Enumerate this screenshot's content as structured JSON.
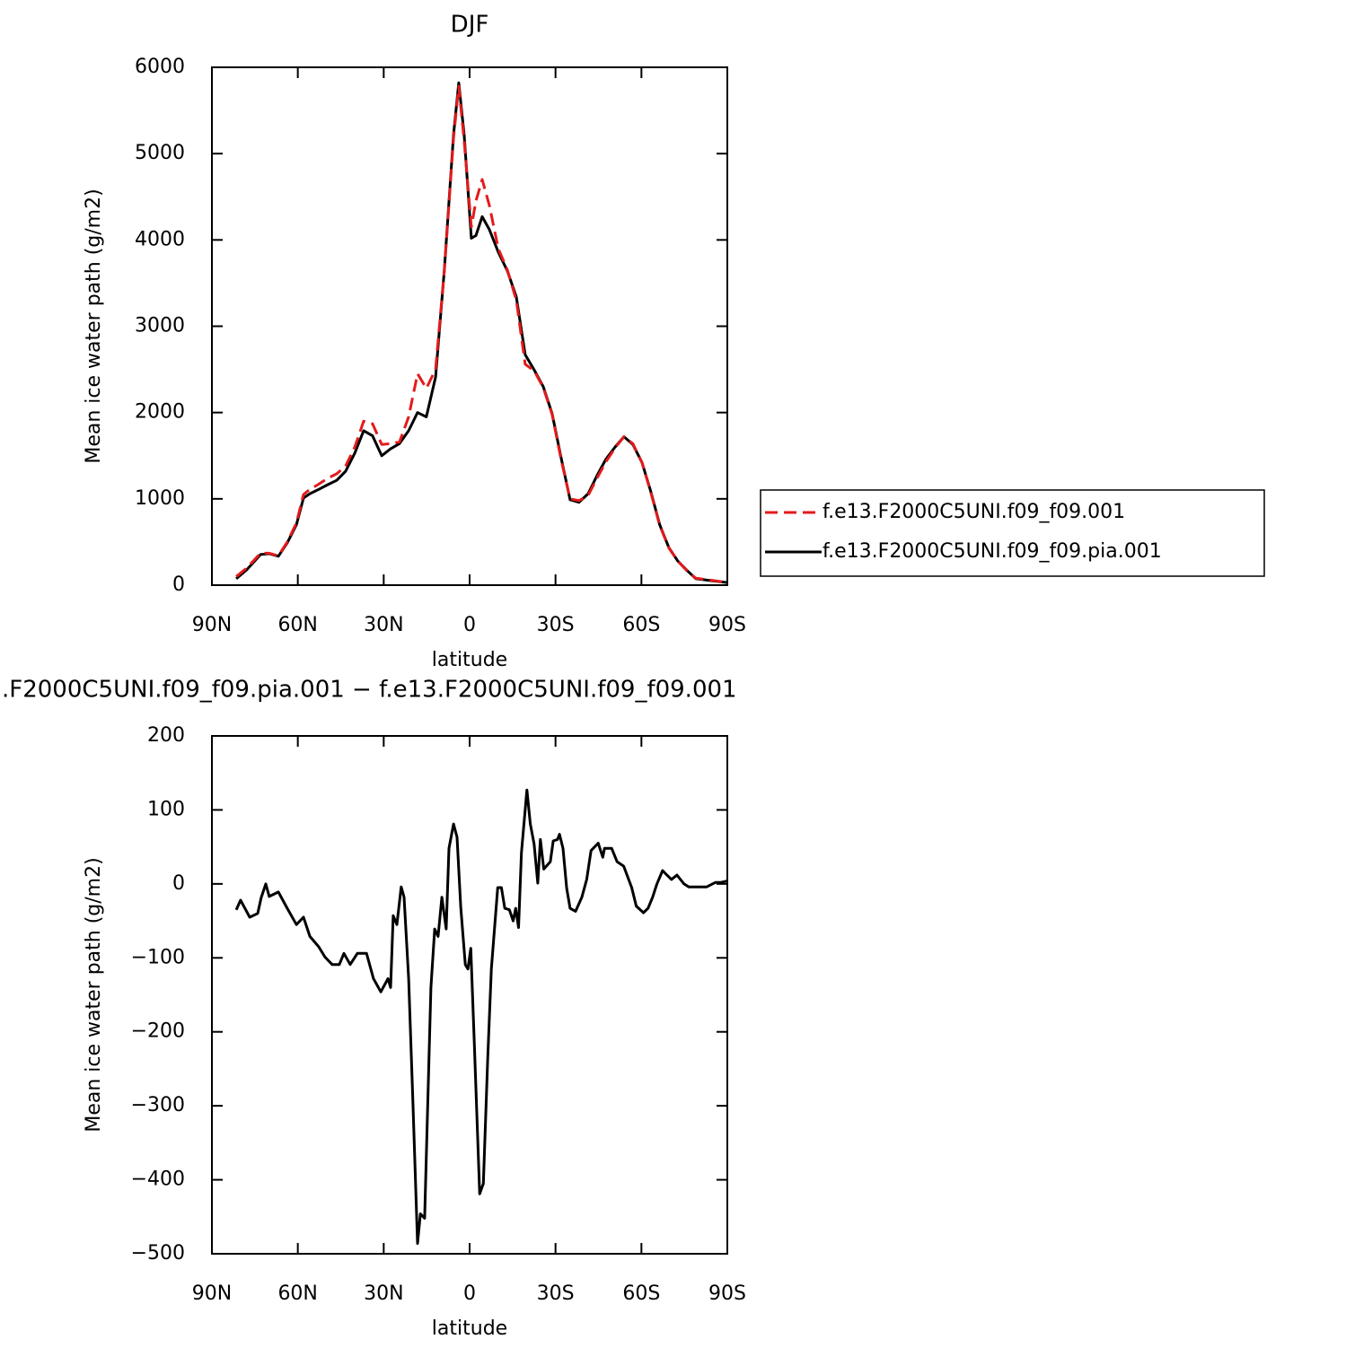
{
  "chart_data": [
    {
      "type": "line",
      "title": "DJF",
      "xlabel": "latitude",
      "ylabel": "Mean ice water path (g/m2)",
      "x": [
        81.5,
        77.8,
        73,
        70,
        66.8,
        63.7,
        60.5,
        58,
        55.8,
        52.7,
        49.5,
        46.4,
        43.3,
        40.1,
        37,
        33.9,
        30.7,
        27.6,
        24.5,
        21.3,
        18.2,
        15.1,
        11.9,
        8.8,
        5.6,
        3.8,
        1.9,
        -0.6,
        -2.2,
        -4.4,
        -6.9,
        -10,
        -13.2,
        -16.3,
        -19.4,
        -22.6,
        -25.7,
        -28.8,
        -32,
        -35.1,
        -38.2,
        -41.4,
        -44.5,
        -47.6,
        -50.8,
        -53.9,
        -57,
        -60.2,
        -63.3,
        -66.4,
        -69.6,
        -72.7,
        -75.8,
        -79,
        -83.7,
        -90
      ],
      "series": [
        {
          "name": "f.e13.F2000C5UNI.f09_f09.001",
          "color": "#e41a1c",
          "linestyle": "dashed",
          "values": [
            100,
            200,
            370,
            370,
            340,
            500,
            720,
            1050,
            1110,
            1170,
            1240,
            1290,
            1380,
            1600,
            1900,
            1870,
            1630,
            1640,
            1660,
            1950,
            2450,
            2280,
            2500,
            3650,
            5180,
            5780,
            5150,
            4150,
            4450,
            4700,
            4400,
            3900,
            3650,
            3300,
            2560,
            2480,
            2290,
            1980,
            1450,
            1000,
            980,
            1040,
            1240,
            1430,
            1590,
            1720,
            1640,
            1420,
            1070,
            690,
            430,
            280,
            170,
            80,
            60,
            30
          ]
        },
        {
          "name": "f.e13.F2000C5UNI.f09_f09.pia.001",
          "color": "#000000",
          "linestyle": "solid",
          "values": [
            75,
            180,
            355,
            365,
            335,
            490,
            700,
            1010,
            1060,
            1110,
            1165,
            1215,
            1320,
            1530,
            1790,
            1730,
            1500,
            1580,
            1640,
            1790,
            2000,
            1950,
            2410,
            3660,
            5220,
            5820,
            5220,
            4020,
            4050,
            4270,
            4120,
            3860,
            3640,
            3340,
            2670,
            2490,
            2300,
            1990,
            1470,
            990,
            960,
            1060,
            1270,
            1460,
            1600,
            1720,
            1630,
            1420,
            1080,
            700,
            435,
            280,
            175,
            75,
            55,
            30
          ]
        }
      ],
      "xlim": [
        90,
        -90
      ],
      "xticks": [
        {
          "value": 90,
          "label": "90N"
        },
        {
          "value": 60,
          "label": "60N"
        },
        {
          "value": 30,
          "label": "30N"
        },
        0,
        {
          "value": -30,
          "label": "30S"
        },
        {
          "value": -60,
          "label": "60S"
        },
        {
          "value": -90,
          "label": "90S"
        }
      ],
      "ylim": [
        0,
        6000
      ],
      "yticks": [
        0,
        1000,
        2000,
        3000,
        4000,
        5000,
        6000
      ],
      "legend": "right"
    },
    {
      "type": "line",
      "title": ".F2000C5UNI.f09_f09.pia.001 − f.e13.F2000C5UNI.f09_f09.001",
      "xlabel": "latitude",
      "ylabel": "Mean ice water path (g/m2)",
      "x": [
        81.5,
        80,
        76.8,
        74,
        72.8,
        71.2,
        70,
        66.8,
        63.7,
        60.5,
        58,
        55.8,
        52.7,
        50.5,
        48,
        45.5,
        43.9,
        41.7,
        39.2,
        36,
        33.6,
        31,
        28.5,
        27.6,
        26.7,
        25.4,
        23.9,
        22.9,
        21.3,
        19.8,
        18.2,
        17.2,
        15.7,
        13.5,
        12.2,
        11,
        9.7,
        8.2,
        7.2,
        5.6,
        4.4,
        3.1,
        1.5,
        0.6,
        -0.4,
        -1.6,
        -3.5,
        -4.8,
        -6.3,
        -7.6,
        -9.8,
        -11.1,
        -12.3,
        -13.9,
        -15.2,
        -16.1,
        -17.1,
        -18.1,
        -20,
        -21.2,
        -22.5,
        -23.8,
        -24.7,
        -25.9,
        -28.2,
        -29.2,
        -30.7,
        -31.4,
        -32.6,
        -33.9,
        -35.1,
        -37,
        -39.2,
        -40.9,
        -42.4,
        -44.9,
        -46.5,
        -47.1,
        -49.6,
        -51.5,
        -53.8,
        -56.6,
        -58.2,
        -60.7,
        -62.3,
        -63.9,
        -65.4,
        -67.4,
        -68.9,
        -70.5,
        -72.4,
        -74.9,
        -76.5,
        -79.6,
        -82.8,
        -85.9,
        -87.8,
        -90
      ],
      "values": [
        -35,
        -22,
        -45,
        -40,
        -19,
        0,
        -17,
        -11,
        -33,
        -55,
        -45,
        -71,
        -85,
        -99,
        -109,
        -109,
        -94,
        -109,
        -94,
        -94,
        -128,
        -146,
        -128,
        -140,
        -43,
        -55,
        -4,
        -18,
        -128,
        -297,
        -486,
        -446,
        -452,
        -140,
        -61,
        -71,
        -18,
        -61,
        48,
        81,
        63,
        -31,
        -109,
        -115,
        -87,
        -211,
        -419,
        -405,
        -238,
        -115,
        -5,
        -5,
        -33,
        -35,
        -50,
        -33,
        -59,
        42,
        127,
        81,
        54,
        1,
        60,
        20,
        30,
        58,
        60,
        67,
        48,
        -6,
        -33,
        -37,
        -18,
        6,
        45,
        55,
        36,
        48,
        48,
        30,
        24,
        -5,
        -30,
        -39,
        -33,
        -18,
        0,
        18,
        12,
        6,
        12,
        0,
        -4,
        -4,
        -4,
        2,
        2,
        4
      ],
      "color": "#000000",
      "xlim": [
        90,
        -90
      ],
      "xticks": [
        {
          "value": 90,
          "label": "90N"
        },
        {
          "value": 60,
          "label": "60N"
        },
        {
          "value": 30,
          "label": "30N"
        },
        0,
        {
          "value": -30,
          "label": "30S"
        },
        {
          "value": -60,
          "label": "60S"
        },
        {
          "value": -90,
          "label": "90S"
        }
      ],
      "ylim": [
        -500,
        200
      ],
      "yticks": [
        {
          "value": -500,
          "label": "−500"
        },
        {
          "value": -400,
          "label": "−400"
        },
        {
          "value": -300,
          "label": "−300"
        },
        {
          "value": -200,
          "label": "−200"
        },
        {
          "value": -100,
          "label": "−100"
        },
        0,
        100,
        200
      ]
    }
  ]
}
